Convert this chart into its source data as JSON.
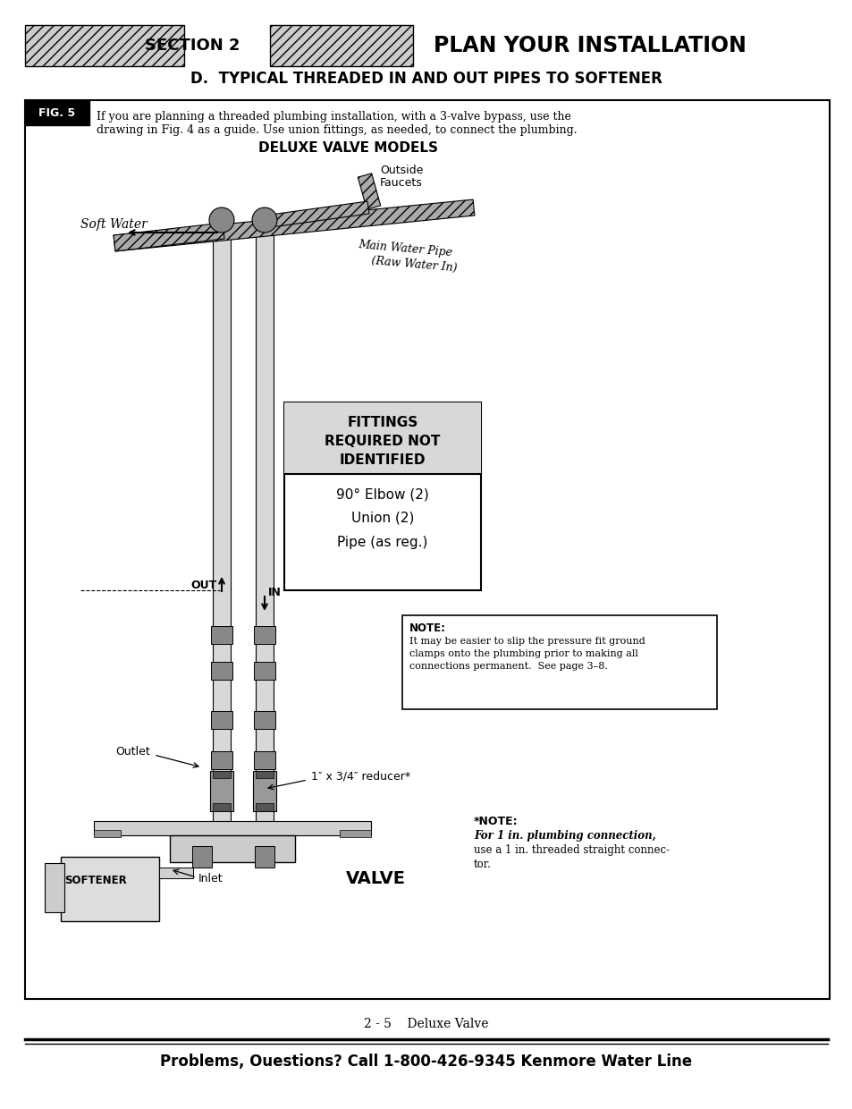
{
  "page_title": "PLAN YOUR INSTALLATION",
  "section_label": "SECTION 2",
  "section_d_title": "D.  TYPICAL THREADED IN AND OUT PIPES TO SOFTENER",
  "fig_label": "FIG. 5",
  "fig_desc1": "If you are planning a threaded plumbing installation, with a 3-valve bypass, use the",
  "fig_desc2": "drawing in Fig. 4 as a guide. Use union fittings, as needed, to connect the plumbing.",
  "diagram_title": "DELUXE VALVE MODELS",
  "fittings_title_line1": "FITTINGS",
  "fittings_title_line2": "REQUIRED NOT",
  "fittings_title_line3": "IDENTIFIED",
  "fittings_item1": "90° Elbow (2)",
  "fittings_item2": "Union (2)",
  "fittings_item3": "Pipe (as reg.)",
  "note_title": "NOTE:",
  "note_line1": "It may be easier to slip the pressure fit ground",
  "note_line2": "clamps onto the plumbing prior to making all",
  "note_line3": "connections permanent.  See page 3–8.",
  "star_note_head": "*NOTE:",
  "star_note_bold": "For 1 in. plumbing connection,",
  "star_note_line2": "use a 1 in. threaded straight connec-",
  "star_note_line3": "tor.",
  "label_soft_water": "Soft Water",
  "label_outside_faucets_1": "Outside",
  "label_outside_faucets_2": "Faucets",
  "label_main_water_1": "Main Water Pipe",
  "label_main_water_2": "(Raw Water In)",
  "label_out": "OUT",
  "label_in": "IN",
  "label_outlet": "Outlet",
  "label_reducer": "1″ x 3/4″ reducer*",
  "label_softener": "SOFTENER",
  "label_inlet": "Inlet",
  "label_valve": "VALVE",
  "footer_center": "2 - 5    Deluxe Valve",
  "footer_bottom": "Problems, Ouestions? Call 1-800-426-9345 Kenmore Water Line",
  "bg_color": "#ffffff"
}
